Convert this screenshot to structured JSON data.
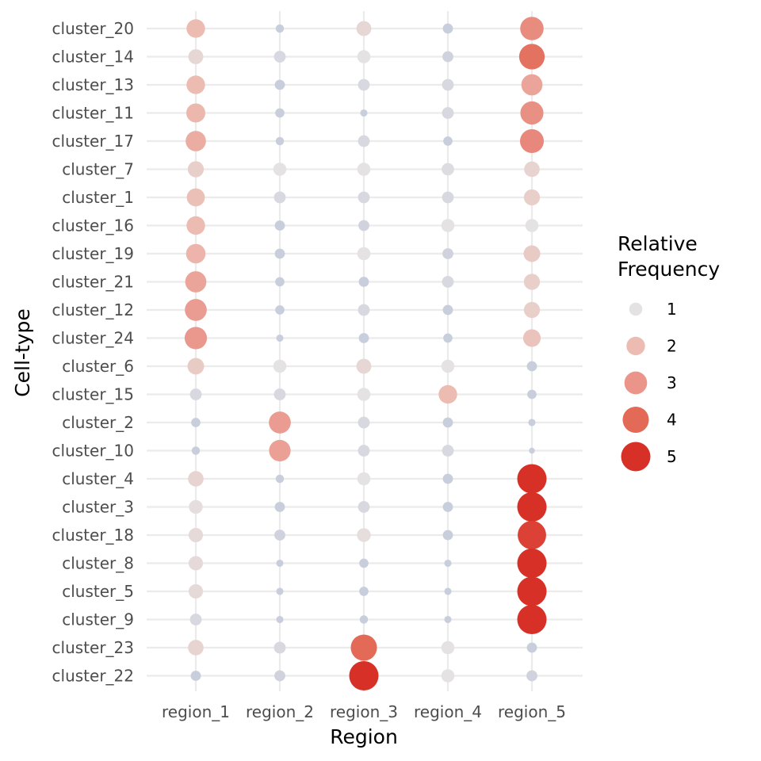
{
  "chart_data": {
    "type": "scatter",
    "xlabel": "Region",
    "ylabel": "Cell-type",
    "x_categories": [
      "region_1",
      "region_2",
      "region_3",
      "region_4",
      "region_5"
    ],
    "y_categories": [
      "cluster_20",
      "cluster_14",
      "cluster_13",
      "cluster_11",
      "cluster_17",
      "cluster_7",
      "cluster_1",
      "cluster_16",
      "cluster_19",
      "cluster_21",
      "cluster_12",
      "cluster_24",
      "cluster_6",
      "cluster_15",
      "cluster_2",
      "cluster_10",
      "cluster_4",
      "cluster_3",
      "cluster_18",
      "cluster_8",
      "cluster_5",
      "cluster_9",
      "cluster_23",
      "cluster_22"
    ],
    "values": [
      [
        2.0,
        0.4,
        1.3,
        0.6,
        3.2
      ],
      [
        1.3,
        0.8,
        1.0,
        0.7,
        3.8
      ],
      [
        2.0,
        0.6,
        0.8,
        0.8,
        2.6
      ],
      [
        2.1,
        0.5,
        0.3,
        0.8,
        3.1
      ],
      [
        2.4,
        0.4,
        0.8,
        0.5,
        3.3
      ],
      [
        1.5,
        1.0,
        1.0,
        0.9,
        1.4
      ],
      [
        1.9,
        0.8,
        0.8,
        0.8,
        1.5
      ],
      [
        2.0,
        0.6,
        0.7,
        1.0,
        1.0
      ],
      [
        2.2,
        0.6,
        1.0,
        0.7,
        1.6
      ],
      [
        2.6,
        0.5,
        0.6,
        0.8,
        1.5
      ],
      [
        2.8,
        0.5,
        0.8,
        0.6,
        1.5
      ],
      [
        2.9,
        0.3,
        0.6,
        0.5,
        1.8
      ],
      [
        1.6,
        1.0,
        1.3,
        1.0,
        0.6
      ],
      [
        0.8,
        0.8,
        1.0,
        2.0,
        0.5
      ],
      [
        0.5,
        2.8,
        0.8,
        0.6,
        0.3
      ],
      [
        0.4,
        2.7,
        0.8,
        0.8,
        0.2
      ],
      [
        1.4,
        0.4,
        1.0,
        0.6,
        5.0
      ],
      [
        1.1,
        0.6,
        0.8,
        0.6,
        5.0
      ],
      [
        1.2,
        0.7,
        1.1,
        0.6,
        4.7
      ],
      [
        1.2,
        0.3,
        0.5,
        0.3,
        5.0
      ],
      [
        1.2,
        0.3,
        0.5,
        0.3,
        5.0
      ],
      [
        0.8,
        0.3,
        0.4,
        0.3,
        5.0
      ],
      [
        1.4,
        0.8,
        4.0,
        1.0,
        0.6
      ],
      [
        0.6,
        0.7,
        5.0,
        1.0,
        0.7
      ]
    ],
    "legend": {
      "title_line1": "Relative",
      "title_line2": "Frequency",
      "entries": [
        "1",
        "2",
        "3",
        "4",
        "5"
      ],
      "entry_values": [
        1,
        2,
        3,
        4,
        5
      ],
      "placement": "right"
    },
    "colors": {
      "low_gray_blue": "#c9cedd",
      "one": "#e4e2e2",
      "two": "#ecbcb2",
      "three": "#ea948a",
      "four": "#e36a57",
      "five": "#d73027",
      "grid": "#ebebeb"
    },
    "grid": true
  }
}
